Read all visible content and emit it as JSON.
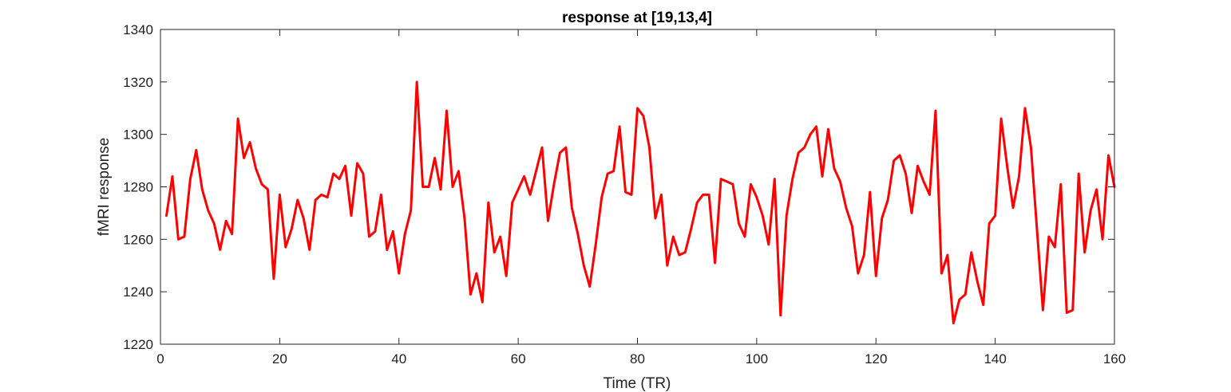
{
  "chart_data": {
    "type": "line",
    "title": "response at [19,13,4]",
    "xlabel": "Time (TR)",
    "ylabel": "fMRI response",
    "xlim": [
      0,
      160
    ],
    "ylim": [
      1220,
      1340
    ],
    "xticks": [
      0,
      20,
      40,
      60,
      80,
      100,
      120,
      140,
      160
    ],
    "yticks": [
      1220,
      1240,
      1260,
      1280,
      1300,
      1320,
      1340
    ],
    "grid": false,
    "line_color": "#ff0000",
    "series": [
      {
        "x": [
          1,
          2,
          3,
          4,
          5,
          6,
          7,
          8,
          9,
          10,
          11,
          12,
          13,
          14,
          15,
          16,
          17,
          18,
          19,
          20,
          21,
          22,
          23,
          24,
          25,
          26,
          27,
          28,
          29,
          30,
          31,
          32,
          33,
          34,
          35,
          36,
          37,
          38,
          39,
          40,
          41,
          42,
          43,
          44,
          45,
          46,
          47,
          48,
          49,
          50,
          51,
          52,
          53,
          54,
          55,
          56,
          57,
          58,
          59,
          60,
          61,
          62,
          63,
          64,
          65,
          66,
          67,
          68,
          69,
          70,
          71,
          72,
          73,
          74,
          75,
          76,
          77,
          78,
          79,
          80,
          81,
          82,
          83,
          84,
          85,
          86,
          87,
          88,
          89,
          90,
          91,
          92,
          93,
          94,
          95,
          96,
          97,
          98,
          99,
          100,
          101,
          102,
          103,
          104,
          105,
          106,
          107,
          108,
          109,
          110,
          111,
          112,
          113,
          114,
          115,
          116,
          117,
          118,
          119,
          120,
          121,
          122,
          123,
          124,
          125,
          126,
          127,
          128,
          129,
          130,
          131,
          132,
          133,
          134,
          135,
          136,
          137,
          138,
          139,
          140,
          141,
          142,
          143,
          144,
          145,
          146,
          147,
          148,
          149,
          150,
          151,
          152,
          153,
          154,
          155,
          156,
          157,
          158,
          159,
          160
        ],
        "y": [
          1269,
          1284,
          1260,
          1261,
          1283,
          1294,
          1279,
          1271,
          1266,
          1256,
          1267,
          1262,
          1306,
          1291,
          1297,
          1287,
          1281,
          1279,
          1245,
          1277,
          1257,
          1264,
          1275,
          1268,
          1256,
          1275,
          1277,
          1276,
          1285,
          1283,
          1288,
          1269,
          1289,
          1285,
          1261,
          1263,
          1277,
          1256,
          1263,
          1247,
          1262,
          1271,
          1320,
          1280,
          1280,
          1291,
          1279,
          1309,
          1280,
          1286,
          1268,
          1239,
          1247,
          1236,
          1274,
          1255,
          1261,
          1246,
          1274,
          1279,
          1284,
          1277,
          1286,
          1295,
          1267,
          1281,
          1293,
          1295,
          1272,
          1262,
          1250,
          1242,
          1258,
          1276,
          1285,
          1286,
          1303,
          1278,
          1277,
          1310,
          1307,
          1295,
          1268,
          1277,
          1250,
          1261,
          1254,
          1255,
          1264,
          1274,
          1277,
          1277,
          1251,
          1283,
          1282,
          1281,
          1266,
          1261,
          1281,
          1276,
          1269,
          1258,
          1283,
          1231,
          1269,
          1283,
          1293,
          1295,
          1300,
          1303,
          1284,
          1302,
          1287,
          1282,
          1272,
          1265,
          1247,
          1254,
          1278,
          1246,
          1268,
          1275,
          1290,
          1292,
          1285,
          1270,
          1288,
          1282,
          1277,
          1309,
          1247,
          1254,
          1228,
          1237,
          1239,
          1255,
          1244,
          1235,
          1266,
          1269,
          1306,
          1288,
          1272,
          1284,
          1310,
          1295,
          1264,
          1233,
          1261,
          1257,
          1281,
          1232,
          1233,
          1285,
          1255,
          1271,
          1279,
          1260,
          1292,
          1280
        ]
      }
    ]
  }
}
